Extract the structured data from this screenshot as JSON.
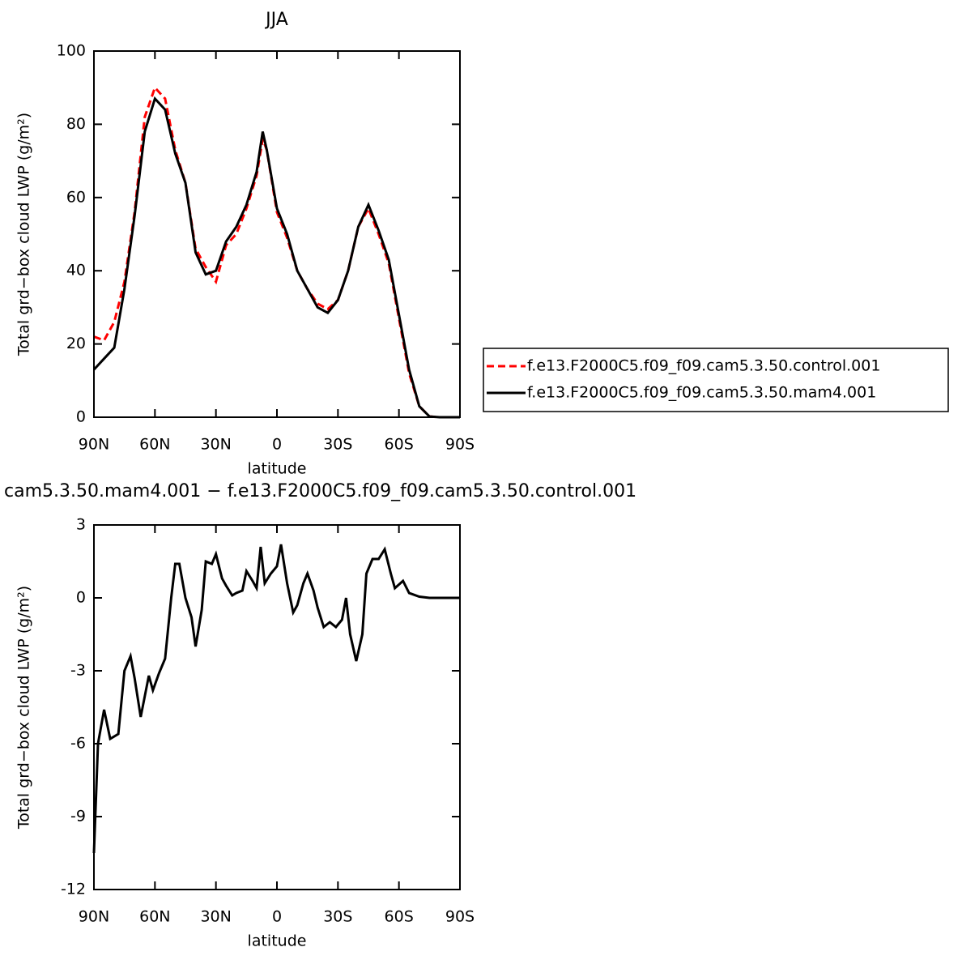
{
  "chart_data": [
    {
      "type": "line",
      "title": "JJA",
      "xlabel": "latitude",
      "ylabel": "Total grd−box cloud LWP (g/m²)",
      "x": [
        90,
        85,
        80,
        75,
        70,
        65,
        60,
        55,
        50,
        45,
        40,
        35,
        30,
        25,
        20,
        15,
        10,
        7,
        5,
        0,
        -5,
        -10,
        -15,
        -20,
        -25,
        -30,
        -35,
        -40,
        -45,
        -50,
        -55,
        -60,
        -65,
        -70,
        -75,
        -80,
        -85,
        -90
      ],
      "series": [
        {
          "name": "f.e13.F2000C5.f09_f09.cam5.3.50.control.001",
          "color": "#ff0000",
          "linestyle": "dashed",
          "values": [
            22,
            21,
            26,
            37,
            56,
            82,
            90,
            87,
            73,
            64,
            46,
            41,
            37,
            47,
            50,
            57,
            66,
            76,
            73,
            56,
            49,
            40,
            35,
            31,
            29.5,
            32,
            40,
            52,
            57,
            50,
            42,
            27,
            12,
            3,
            0.2,
            0,
            0,
            0
          ]
        },
        {
          "name": "f.e13.F2000C5.f09_f09.cam5.3.50.mam4.001",
          "color": "#000000",
          "linestyle": "solid",
          "values": [
            13,
            16,
            19,
            35,
            55,
            78,
            87,
            84,
            72,
            64,
            45,
            39,
            40,
            48,
            52,
            58,
            67,
            78,
            73,
            57,
            50,
            40,
            35,
            30,
            28.5,
            32,
            40,
            52,
            58,
            51,
            43,
            28,
            13,
            3,
            0.2,
            0,
            0,
            0
          ]
        }
      ],
      "xlim": [
        90,
        -90
      ],
      "xticks": [
        {
          "value": 90,
          "label": "90N"
        },
        {
          "value": 60,
          "label": "60N"
        },
        {
          "value": 30,
          "label": "30N"
        },
        0,
        {
          "value": -30,
          "label": "30S"
        },
        {
          "value": -60,
          "label": "60S"
        },
        {
          "value": -90,
          "label": "90S"
        }
      ],
      "ylim": [
        0,
        100
      ],
      "yticks": [
        0,
        20,
        40,
        60,
        80,
        100
      ],
      "legend": "right"
    },
    {
      "type": "line",
      "title": "cam5.3.50.mam4.001 − f.e13.F2000C5.f09_f09.cam5.3.50.control.001",
      "xlabel": "latitude",
      "ylabel": "Total grd−box cloud LWP (g/m²)",
      "x": [
        90,
        88,
        85,
        82,
        78,
        75,
        72,
        70,
        67,
        63,
        61,
        58,
        55,
        52,
        50,
        48,
        45,
        42,
        40,
        37,
        35,
        32,
        30,
        27,
        25,
        22,
        20,
        17,
        15,
        12,
        10,
        8,
        6,
        3,
        0,
        -2,
        -5,
        -8,
        -10,
        -13,
        -15,
        -18,
        -20,
        -23,
        -26,
        -29,
        -32,
        -34,
        -36,
        -39,
        -42,
        -44,
        -47,
        -50,
        -53,
        -56,
        -58,
        -62,
        -65,
        -70,
        -75,
        -90
      ],
      "values": [
        -10.5,
        -6,
        -4.6,
        -5.8,
        -5.6,
        -3,
        -2.4,
        -3.3,
        -4.9,
        -3.2,
        -3.8,
        -3.1,
        -2.5,
        0,
        1.4,
        1.4,
        0,
        -0.8,
        -2,
        -0.5,
        1.5,
        1.4,
        1.8,
        0.8,
        0.5,
        0.1,
        0.2,
        0.3,
        1.1,
        0.7,
        0.4,
        2.1,
        0.6,
        1.0,
        1.3,
        2.2,
        0.6,
        -0.6,
        -0.3,
        0.6,
        1.0,
        0.3,
        -0.4,
        -1.2,
        -1.0,
        -1.2,
        -0.9,
        0,
        -1.5,
        -2.6,
        -1.5,
        1.0,
        1.6,
        1.6,
        2.0,
        1.0,
        0.4,
        0.7,
        0.2,
        0.05,
        0,
        0
      ],
      "color": "#000000",
      "linestyle": "solid",
      "xlim": [
        90,
        -90
      ],
      "xticks": [
        {
          "value": 90,
          "label": "90N"
        },
        {
          "value": 60,
          "label": "60N"
        },
        {
          "value": 30,
          "label": "30N"
        },
        0,
        {
          "value": -30,
          "label": "30S"
        },
        {
          "value": -60,
          "label": "60S"
        },
        {
          "value": -90,
          "label": "90S"
        }
      ],
      "ylim": [
        -12,
        3
      ],
      "yticks": [
        -12,
        -9,
        -6,
        -3,
        0,
        3
      ]
    }
  ]
}
